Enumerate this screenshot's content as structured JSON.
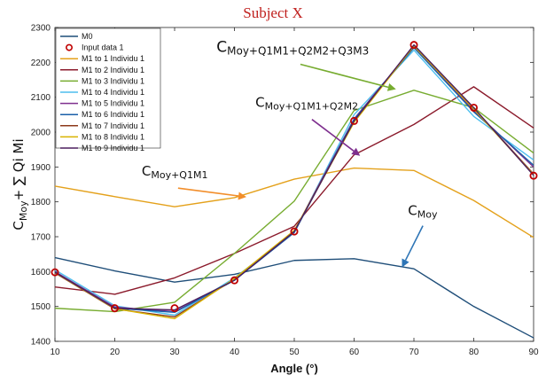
{
  "chart_data": {
    "type": "line",
    "title": "Subject X",
    "xlabel": "Angle (°)",
    "ylabel_main": "C",
    "ylabel_sub": "Moy",
    "ylabel_rest": "+ ∑ Qi Mi",
    "xlim": [
      10,
      90
    ],
    "ylim": [
      1400,
      2300
    ],
    "x": [
      10,
      20,
      30,
      40,
      50,
      60,
      70,
      80,
      90
    ],
    "x_ticks": [
      "10",
      "20",
      "30",
      "40",
      "50",
      "60",
      "70",
      "80",
      "90"
    ],
    "y_ticks": [
      "1400",
      "1500",
      "1600",
      "1700",
      "1800",
      "1900",
      "2000",
      "2100",
      "2200",
      "2300"
    ],
    "grid": false,
    "legend_position": "top-left",
    "series": [
      {
        "name": "M0",
        "color": "#1f4e79",
        "values": [
          1640,
          1602,
          1570,
          1592,
          1632,
          1637,
          1608,
          1500,
          1410
        ]
      },
      {
        "name": "Input data 1",
        "color": "#c00000",
        "marker": "circle",
        "values": [
          1598,
          1495,
          1495,
          1575,
          1715,
          2032,
          2250,
          2070,
          1875
        ]
      },
      {
        "name": "M1 to 1 Individu 1",
        "color": "#e4a11b",
        "values": [
          1845,
          1815,
          1786,
          1812,
          1865,
          1897,
          1890,
          1804,
          1698
        ]
      },
      {
        "name": "M1 to 2 Individu 1",
        "color": "#8b1a2b",
        "values": [
          1556,
          1535,
          1582,
          1652,
          1730,
          1935,
          2022,
          2130,
          2012
        ]
      },
      {
        "name": "M1 to 3 Individu 1",
        "color": "#77ac30",
        "values": [
          1495,
          1485,
          1512,
          1652,
          1802,
          2062,
          2120,
          2070,
          1940
        ]
      },
      {
        "name": "M1 to 4 Individu 1",
        "color": "#4dbeee",
        "values": [
          1605,
          1502,
          1475,
          1582,
          1713,
          2050,
          2235,
          2045,
          1920
        ]
      },
      {
        "name": "M1 to 5 Individu 1",
        "color": "#7e2f8e",
        "values": [
          1600,
          1498,
          1485,
          1576,
          1716,
          2038,
          2245,
          2062,
          1900
        ]
      },
      {
        "name": "M1 to 6 Individu 1",
        "color": "#1a5fa8",
        "values": [
          1598,
          1495,
          1483,
          1575,
          1712,
          2036,
          2242,
          2058,
          1905
        ]
      },
      {
        "name": "M1 to 7 Individu 1",
        "color": "#8c3a1a",
        "values": [
          1596,
          1493,
          1470,
          1578,
          1716,
          2030,
          2248,
          2068,
          1880
        ]
      },
      {
        "name": "M1 to 8 Individu 1",
        "color": "#d9b300",
        "values": [
          1597,
          1494,
          1465,
          1580,
          1718,
          2028,
          2247,
          2066,
          1878
        ]
      },
      {
        "name": "M1 to 9 Individu 1",
        "color": "#4b1e5e",
        "values": [
          1598,
          1495,
          1490,
          1575,
          1715,
          2032,
          2250,
          2070,
          1876
        ]
      }
    ],
    "annotations": [
      {
        "main": "C",
        "sub": "Moy+Q1M1+Q2M2+Q3M3",
        "x": 37,
        "y": 2230,
        "arrow_to": [
          67,
          2123
        ],
        "arrow_color": "#77ac30",
        "size": "large"
      },
      {
        "main": "C",
        "sub": "Moy+Q1M1+Q2M2",
        "x": 43.5,
        "y": 2072,
        "arrow_to": [
          61,
          1932
        ],
        "arrow_color": "#7e2f8e",
        "size": "medium"
      },
      {
        "main": "C",
        "sub": "Moy+Q1M1",
        "x": 24.5,
        "y": 1875,
        "arrow_to": [
          42,
          1814
        ],
        "arrow_color": "#f28e2b",
        "size": "medium"
      },
      {
        "main": "C",
        "sub": "Moy",
        "x": 69,
        "y": 1762,
        "arrow_to": [
          68,
          1612
        ],
        "arrow_color": "#2e75b6",
        "size": "medium"
      }
    ]
  }
}
